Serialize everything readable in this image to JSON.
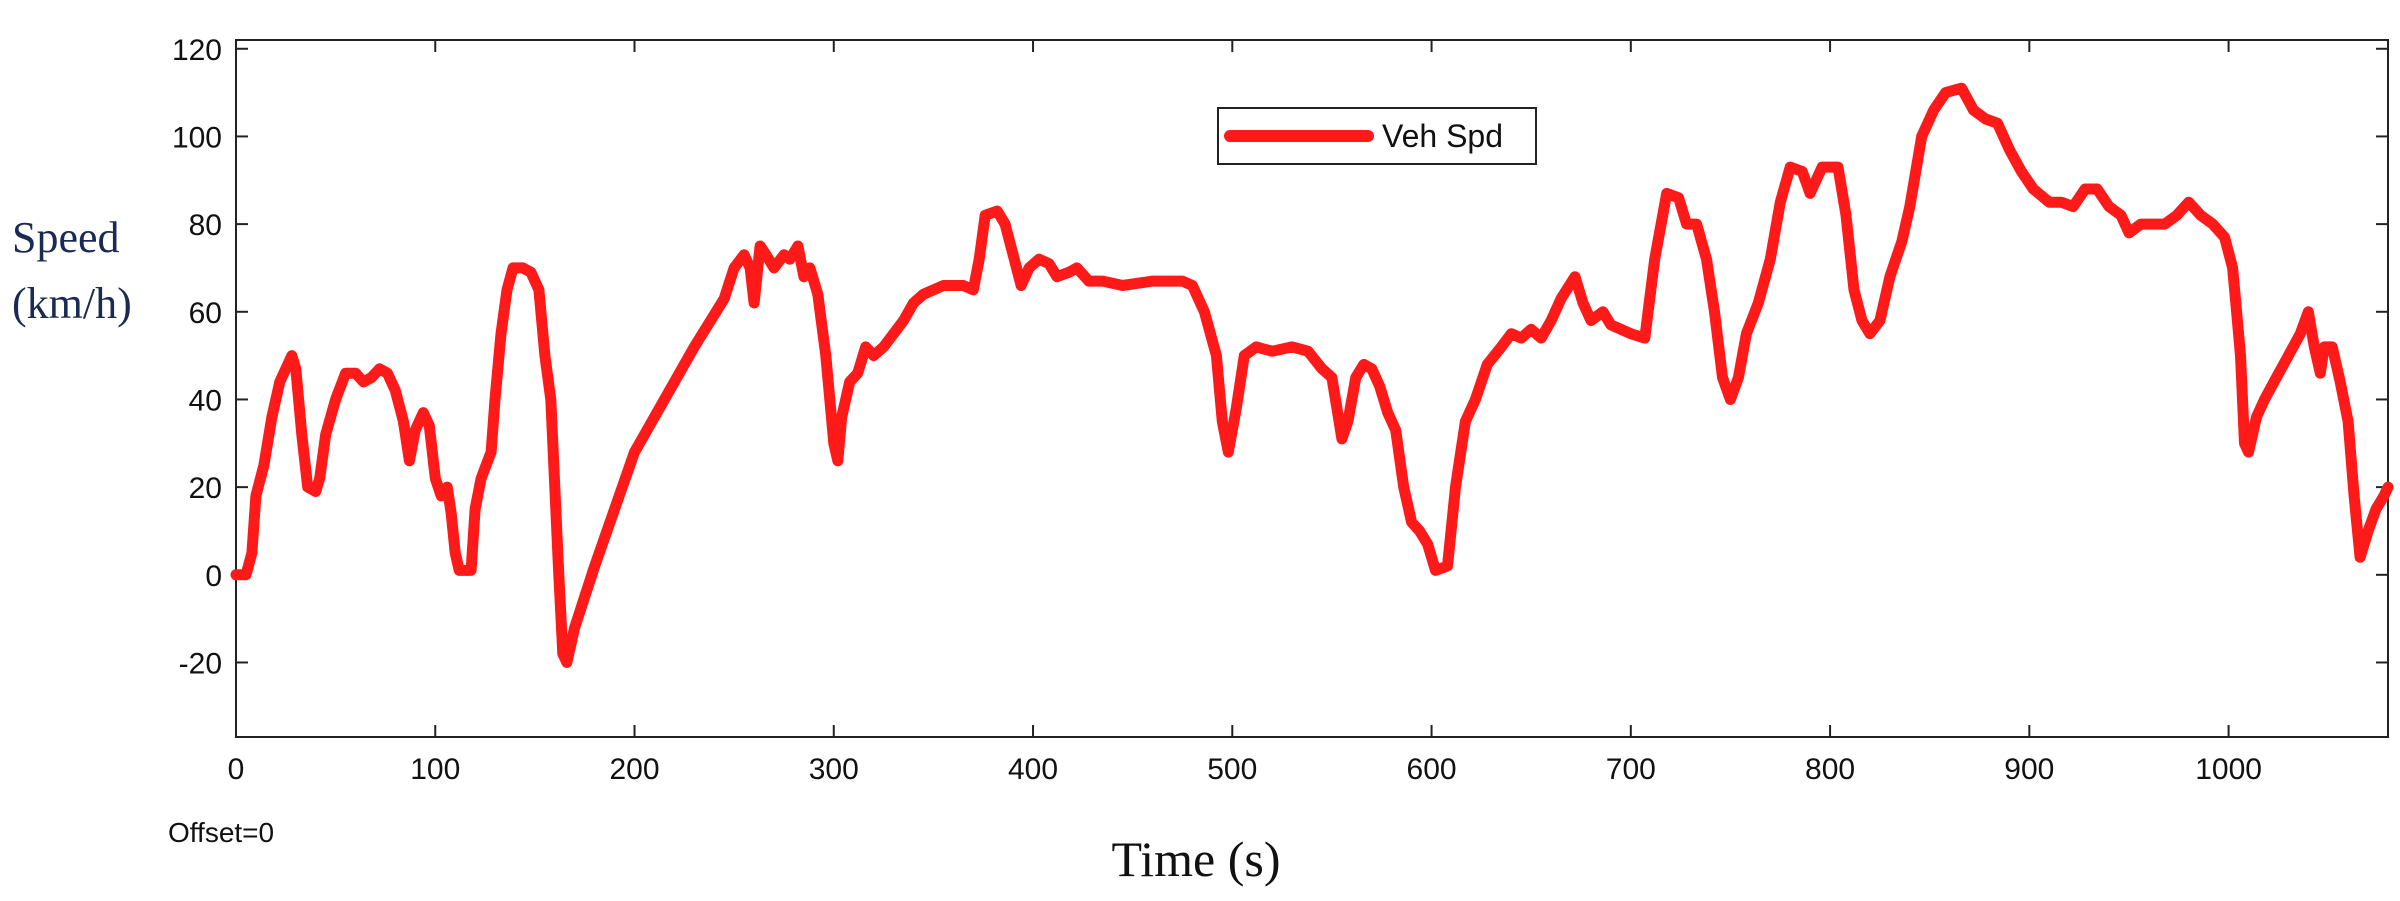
{
  "chart_data": {
    "type": "line",
    "xlabel": "Time (s)",
    "ylabel_lines": [
      "Speed",
      "(km/h)"
    ],
    "xlim": [
      0,
      1080
    ],
    "ylim": [
      -37,
      122
    ],
    "xticks": [
      0,
      100,
      200,
      300,
      400,
      500,
      600,
      700,
      800,
      900,
      1000
    ],
    "yticks": [
      -20,
      0,
      20,
      40,
      60,
      80,
      100,
      120
    ],
    "grid": false,
    "legend_position": "top-center",
    "annotation": "Offset=0",
    "series": [
      {
        "name": "Veh Spd",
        "color": "#ff1a1a",
        "points": [
          [
            0,
            0
          ],
          [
            5,
            0
          ],
          [
            8,
            5
          ],
          [
            10,
            18
          ],
          [
            14,
            25
          ],
          [
            18,
            36
          ],
          [
            22,
            44
          ],
          [
            26,
            48
          ],
          [
            28,
            50
          ],
          [
            30,
            47
          ],
          [
            33,
            32
          ],
          [
            36,
            20
          ],
          [
            40,
            19
          ],
          [
            42,
            22
          ],
          [
            45,
            32
          ],
          [
            50,
            40
          ],
          [
            55,
            46
          ],
          [
            60,
            46
          ],
          [
            64,
            44
          ],
          [
            68,
            45
          ],
          [
            72,
            47
          ],
          [
            76,
            46
          ],
          [
            80,
            42
          ],
          [
            84,
            35
          ],
          [
            87,
            26
          ],
          [
            90,
            33
          ],
          [
            94,
            37
          ],
          [
            97,
            34
          ],
          [
            100,
            22
          ],
          [
            103,
            18
          ],
          [
            106,
            20
          ],
          [
            108,
            14
          ],
          [
            110,
            5
          ],
          [
            112,
            1
          ],
          [
            118,
            1
          ],
          [
            120,
            15
          ],
          [
            123,
            22
          ],
          [
            128,
            28
          ],
          [
            130,
            40
          ],
          [
            133,
            55
          ],
          [
            136,
            65
          ],
          [
            139,
            70
          ],
          [
            144,
            70
          ],
          [
            148,
            69
          ],
          [
            152,
            65
          ],
          [
            155,
            50
          ],
          [
            158,
            40
          ],
          [
            160,
            20
          ],
          [
            162,
            0
          ],
          [
            164,
            -18
          ],
          [
            166,
            -20
          ],
          [
            170,
            -12
          ],
          [
            180,
            2
          ],
          [
            190,
            15
          ],
          [
            200,
            28
          ],
          [
            215,
            40
          ],
          [
            230,
            52
          ],
          [
            245,
            63
          ],
          [
            250,
            70
          ],
          [
            255,
            73
          ],
          [
            258,
            70
          ],
          [
            260,
            62
          ],
          [
            263,
            75
          ],
          [
            266,
            73
          ],
          [
            270,
            70
          ],
          [
            275,
            73
          ],
          [
            278,
            72
          ],
          [
            282,
            75
          ],
          [
            285,
            68
          ],
          [
            288,
            70
          ],
          [
            292,
            64
          ],
          [
            296,
            50
          ],
          [
            300,
            30
          ],
          [
            302,
            26
          ],
          [
            304,
            36
          ],
          [
            308,
            44
          ],
          [
            312,
            46
          ],
          [
            316,
            52
          ],
          [
            320,
            50
          ],
          [
            325,
            52
          ],
          [
            330,
            55
          ],
          [
            335,
            58
          ],
          [
            340,
            62
          ],
          [
            345,
            64
          ],
          [
            355,
            66
          ],
          [
            365,
            66
          ],
          [
            370,
            65
          ],
          [
            373,
            72
          ],
          [
            376,
            82
          ],
          [
            382,
            83
          ],
          [
            386,
            80
          ],
          [
            390,
            73
          ],
          [
            394,
            66
          ],
          [
            398,
            70
          ],
          [
            403,
            72
          ],
          [
            408,
            71
          ],
          [
            412,
            68
          ],
          [
            418,
            69
          ],
          [
            422,
            70
          ],
          [
            428,
            67
          ],
          [
            435,
            67
          ],
          [
            445,
            66
          ],
          [
            460,
            67
          ],
          [
            475,
            67
          ],
          [
            480,
            66
          ],
          [
            486,
            60
          ],
          [
            492,
            50
          ],
          [
            495,
            35
          ],
          [
            498,
            28
          ],
          [
            502,
            38
          ],
          [
            506,
            50
          ],
          [
            512,
            52
          ],
          [
            520,
            51
          ],
          [
            530,
            52
          ],
          [
            538,
            51
          ],
          [
            545,
            47
          ],
          [
            550,
            45
          ],
          [
            555,
            31
          ],
          [
            558,
            35
          ],
          [
            562,
            45
          ],
          [
            566,
            48
          ],
          [
            570,
            47
          ],
          [
            574,
            43
          ],
          [
            578,
            37
          ],
          [
            582,
            33
          ],
          [
            586,
            20
          ],
          [
            590,
            12
          ],
          [
            594,
            10
          ],
          [
            598,
            7
          ],
          [
            602,
            1
          ],
          [
            608,
            2
          ],
          [
            612,
            20
          ],
          [
            617,
            35
          ],
          [
            622,
            40
          ],
          [
            628,
            48
          ],
          [
            635,
            52
          ],
          [
            640,
            55
          ],
          [
            645,
            54
          ],
          [
            650,
            56
          ],
          [
            655,
            54
          ],
          [
            660,
            58
          ],
          [
            665,
            63
          ],
          [
            672,
            68
          ],
          [
            676,
            62
          ],
          [
            680,
            58
          ],
          [
            686,
            60
          ],
          [
            690,
            57
          ],
          [
            700,
            55
          ],
          [
            707,
            54
          ],
          [
            712,
            72
          ],
          [
            718,
            87
          ],
          [
            724,
            86
          ],
          [
            728,
            80
          ],
          [
            733,
            80
          ],
          [
            738,
            72
          ],
          [
            742,
            60
          ],
          [
            746,
            45
          ],
          [
            750,
            40
          ],
          [
            754,
            45
          ],
          [
            758,
            55
          ],
          [
            764,
            62
          ],
          [
            770,
            72
          ],
          [
            775,
            85
          ],
          [
            780,
            93
          ],
          [
            786,
            92
          ],
          [
            790,
            87
          ],
          [
            796,
            93
          ],
          [
            804,
            93
          ],
          [
            808,
            82
          ],
          [
            812,
            65
          ],
          [
            816,
            58
          ],
          [
            820,
            55
          ],
          [
            825,
            58
          ],
          [
            830,
            68
          ],
          [
            836,
            76
          ],
          [
            840,
            84
          ],
          [
            846,
            100
          ],
          [
            852,
            106
          ],
          [
            858,
            110
          ],
          [
            866,
            111
          ],
          [
            872,
            106
          ],
          [
            878,
            104
          ],
          [
            884,
            103
          ],
          [
            890,
            97
          ],
          [
            896,
            92
          ],
          [
            902,
            88
          ],
          [
            910,
            85
          ],
          [
            916,
            85
          ],
          [
            922,
            84
          ],
          [
            928,
            88
          ],
          [
            934,
            88
          ],
          [
            940,
            84
          ],
          [
            946,
            82
          ],
          [
            950,
            78
          ],
          [
            956,
            80
          ],
          [
            962,
            80
          ],
          [
            968,
            80
          ],
          [
            974,
            82
          ],
          [
            980,
            85
          ],
          [
            986,
            82
          ],
          [
            992,
            80
          ],
          [
            998,
            77
          ],
          [
            1002,
            70
          ],
          [
            1004,
            60
          ],
          [
            1006,
            50
          ],
          [
            1008,
            30
          ],
          [
            1010,
            28
          ],
          [
            1014,
            36
          ],
          [
            1018,
            40
          ],
          [
            1024,
            45
          ],
          [
            1030,
            50
          ],
          [
            1036,
            55
          ],
          [
            1040,
            60
          ],
          [
            1043,
            52
          ],
          [
            1046,
            46
          ],
          [
            1048,
            52
          ],
          [
            1052,
            52
          ],
          [
            1056,
            44
          ],
          [
            1060,
            35
          ],
          [
            1063,
            18
          ],
          [
            1066,
            4
          ],
          [
            1070,
            10
          ],
          [
            1074,
            15
          ],
          [
            1078,
            18
          ],
          [
            1080,
            20
          ]
        ]
      }
    ]
  }
}
